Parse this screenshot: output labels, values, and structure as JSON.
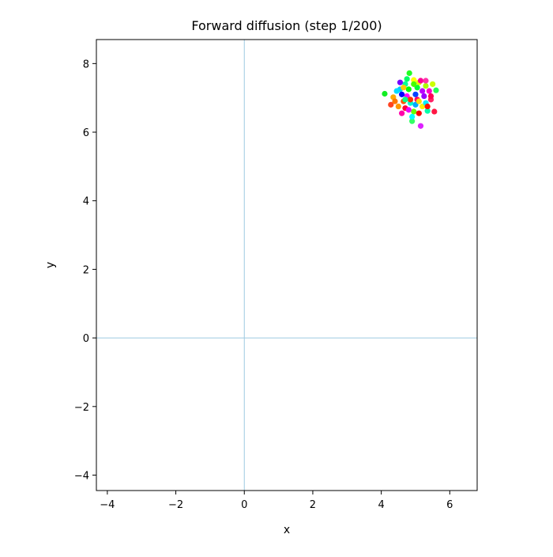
{
  "chart_data": {
    "type": "scatter",
    "title": "Forward diffusion (step 1/200)",
    "x_label": "x",
    "y_label": "y",
    "xlim": [
      -4.32,
      6.8
    ],
    "ylim": [
      -4.45,
      8.7
    ],
    "xticks": [
      {
        "value": -4,
        "label": "−4"
      },
      {
        "value": -2,
        "label": "−2"
      },
      0,
      2,
      4,
      6
    ],
    "yticks": [
      {
        "value": -4,
        "label": "−4"
      },
      {
        "value": -2,
        "label": "−2"
      },
      0,
      2,
      4,
      6,
      8
    ],
    "axhline": 0,
    "axvline": 0,
    "ref_line_color": "#9ecae1",
    "x": [
      4.82,
      4.1,
      5.6,
      5.55,
      5.15,
      4.9,
      4.28,
      4.35,
      5.45,
      4.6,
      4.95,
      5.1,
      4.7,
      4.55,
      5.3,
      5.0,
      4.75,
      4.85,
      5.2,
      4.65,
      5.35,
      4.95,
      5.05,
      4.5,
      5.25,
      4.8,
      4.7,
      5.4,
      4.6,
      5.15,
      4.9,
      5.5,
      4.4,
      5.1,
      4.75,
      5.3,
      4.55,
      5.05,
      4.85,
      5.2,
      4.65,
      5.0,
      5.45,
      4.45,
      4.95,
      5.3,
      4.7,
      5.1,
      4.8,
      5.35
    ],
    "values": [
      7.72,
      7.12,
      7.22,
      6.6,
      6.18,
      6.32,
      6.8,
      7.02,
      6.95,
      6.55,
      7.52,
      7.45,
      7.4,
      7.25,
      7.35,
      7.1,
      7.05,
      6.85,
      6.75,
      6.9,
      6.62,
      6.6,
      6.95,
      6.75,
      7.05,
      7.25,
      6.7,
      7.2,
      7.1,
      7.5,
      6.45,
      7.4,
      6.9,
      6.55,
      7.55,
      6.85,
      7.45,
      7.3,
      6.95,
      7.2,
      7.3,
      6.8,
      7.05,
      7.2,
      7.4,
      7.5,
      6.95,
      6.9,
      6.65,
      6.75
    ],
    "colors": [
      "#22ff22",
      "#11ee22",
      "#22ff55",
      "#ff1744",
      "#dd22ff",
      "#33ff66",
      "#ff4422",
      "#ffaa00",
      "#ff2266",
      "#ff00aa",
      "#ffff00",
      "#ddff00",
      "#00ff99",
      "#00ccff",
      "#aaff00",
      "#0044ff",
      "#ff00ff",
      "#00ffcc",
      "#ffee00",
      "#ff5500",
      "#00ffaa",
      "#66ff00",
      "#ff0066",
      "#ff9900",
      "#9900ff",
      "#00ff00",
      "#ff0033",
      "#ff00cc",
      "#0000ff",
      "#ff0099",
      "#00ffff",
      "#ccff00",
      "#ff7700",
      "#ff0000",
      "#00ff66",
      "#00eeff",
      "#7700ff",
      "#00ff33",
      "#ff3300",
      "#bb00ff",
      "#ffcc00",
      "#00aaff",
      "#ff0055",
      "#00ddff",
      "#44ff00",
      "#ff33aa",
      "#00ff88",
      "#ffdd00",
      "#ee00ff",
      "#ff1100"
    ]
  }
}
